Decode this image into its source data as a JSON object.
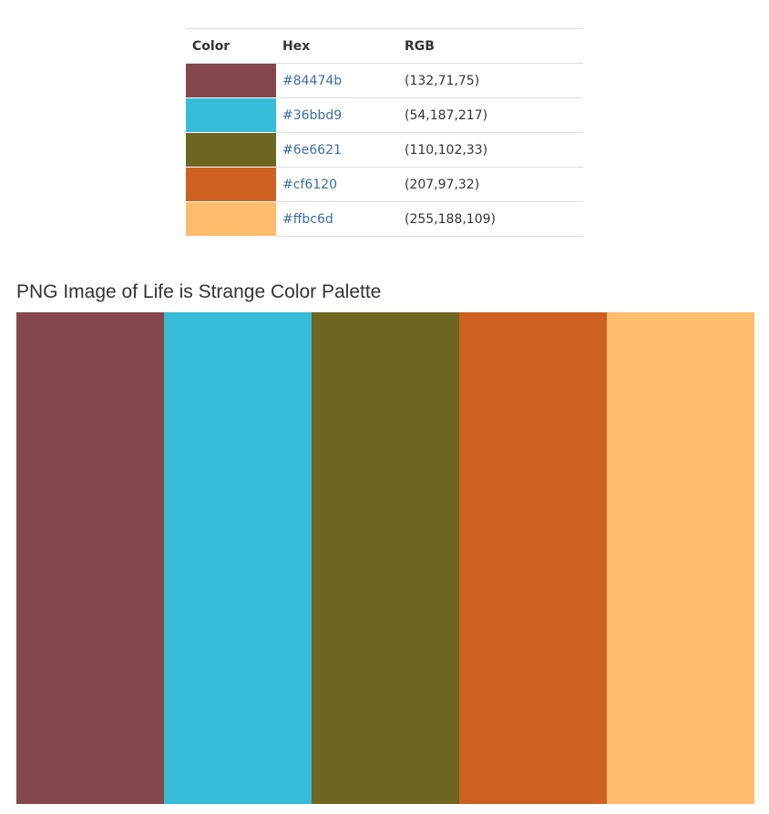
{
  "table": {
    "headers": {
      "color": "Color",
      "hex": "Hex",
      "rgb": "RGB"
    },
    "rows": [
      {
        "hex": "#84474b",
        "rgb": "(132,71,75)",
        "swatch": "#84474b"
      },
      {
        "hex": "#36bbd9",
        "rgb": "(54,187,217)",
        "swatch": "#36bbd9"
      },
      {
        "hex": "#6e6621",
        "rgb": "(110,102,33)",
        "swatch": "#6e6621"
      },
      {
        "hex": "#cf6120",
        "rgb": "(207,97,32)",
        "swatch": "#cf6120"
      },
      {
        "hex": "#ffbc6d",
        "rgb": "(255,188,109)",
        "swatch": "#ffbc6d"
      }
    ]
  },
  "png_section": {
    "title": "PNG Image of Life is Strange Color Palette",
    "colors": [
      "#84474b",
      "#36bbd9",
      "#6e6621",
      "#cf6120",
      "#ffbc6d"
    ]
  },
  "theme": {
    "link_color": "#3b6ea5",
    "border_color": "#dddddd"
  }
}
